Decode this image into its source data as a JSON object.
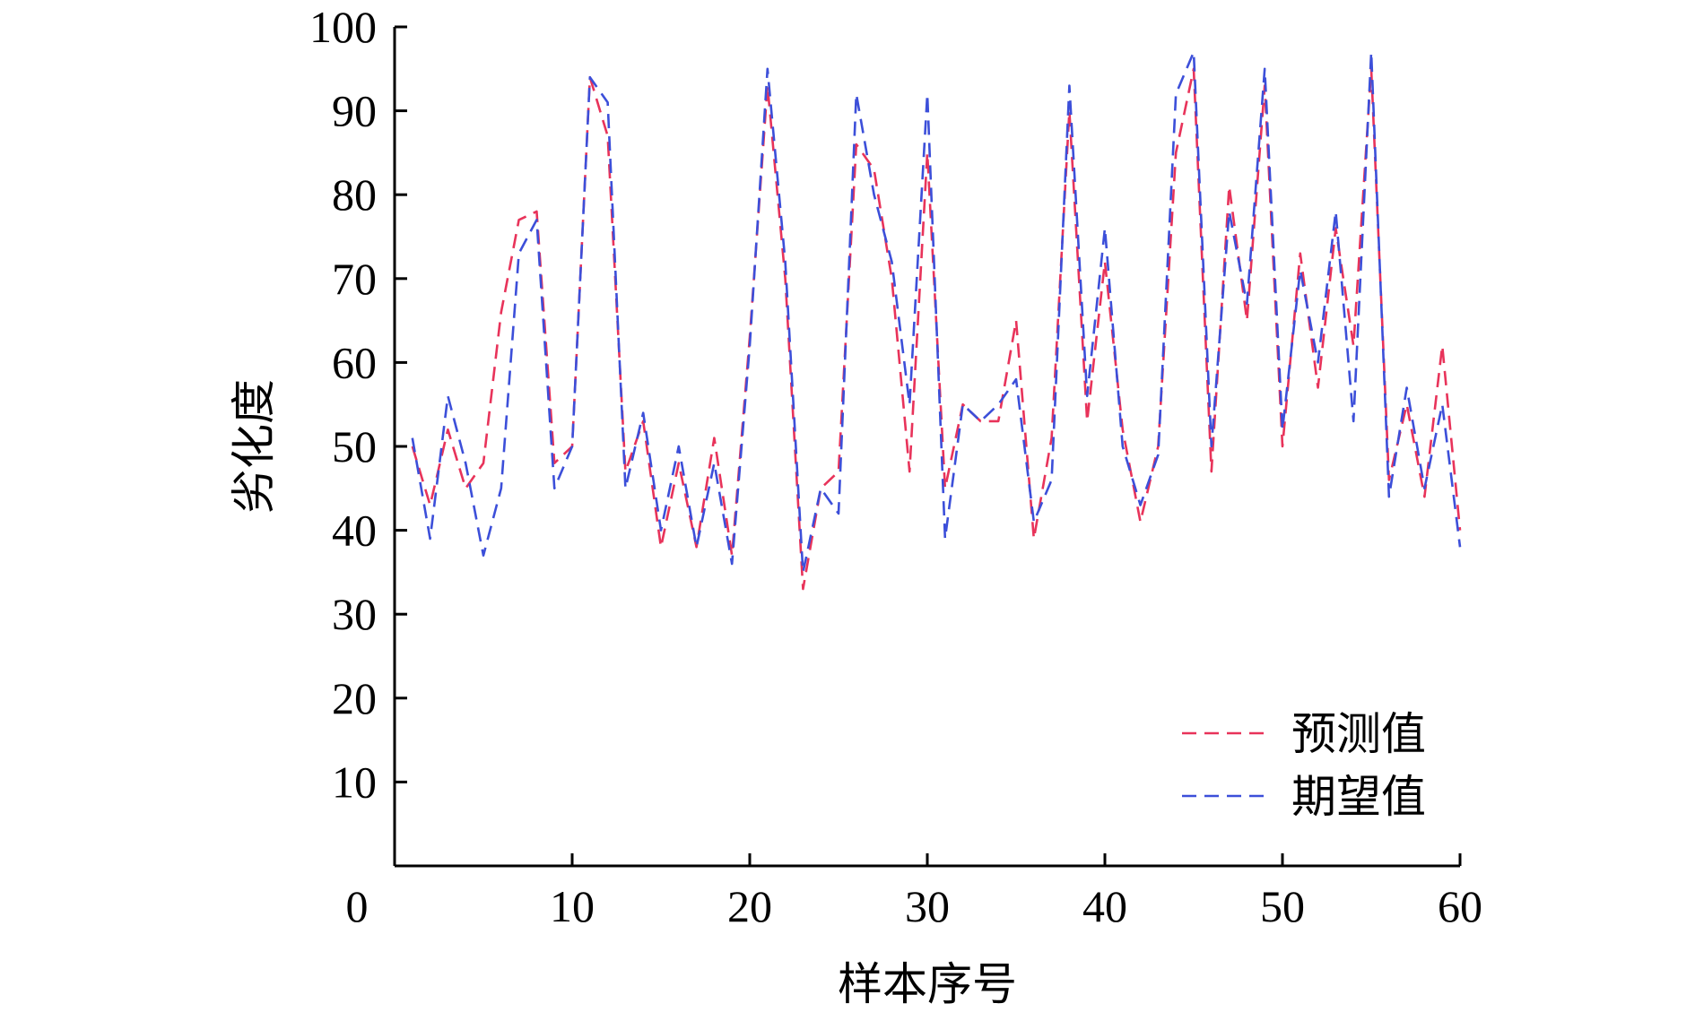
{
  "chart_data": {
    "type": "line",
    "title": "",
    "xlabel": "样本序号",
    "ylabel": "劣化度",
    "xlim": [
      0,
      60
    ],
    "ylim": [
      0,
      100
    ],
    "x_ticks": [
      0,
      10,
      20,
      30,
      40,
      50,
      60
    ],
    "y_ticks": [
      10,
      20,
      30,
      40,
      50,
      60,
      70,
      80,
      90,
      100
    ],
    "grid": false,
    "legend_position": "bottom-right",
    "x": [
      1,
      2,
      3,
      4,
      5,
      6,
      7,
      8,
      9,
      10,
      11,
      12,
      13,
      14,
      15,
      16,
      17,
      18,
      19,
      20,
      21,
      22,
      23,
      24,
      25,
      26,
      27,
      28,
      29,
      30,
      31,
      32,
      33,
      34,
      35,
      36,
      37,
      38,
      39,
      40,
      41,
      42,
      43,
      44,
      45,
      46,
      47,
      48,
      49,
      50,
      51,
      52,
      53,
      54,
      55,
      56,
      57,
      58,
      59,
      60
    ],
    "series": [
      {
        "name": "预测值",
        "color": "#e8335a",
        "dash": "dashed",
        "values": [
          50,
          43,
          52,
          45,
          48,
          66,
          77,
          78,
          48,
          50,
          94,
          87,
          47,
          53,
          38,
          48,
          38,
          51,
          37,
          63,
          93,
          70,
          33,
          45,
          47,
          86,
          83,
          70,
          47,
          85,
          45,
          55,
          53,
          53,
          65,
          39,
          51,
          90,
          53,
          72,
          52,
          41,
          50,
          85,
          95,
          47,
          81,
          65,
          93,
          50,
          73,
          57,
          76,
          62,
          95,
          46,
          55,
          44,
          62,
          40
        ]
      },
      {
        "name": "期望值",
        "color": "#3c4fd9",
        "dash": "dashed",
        "values": [
          51,
          39,
          56,
          48,
          37,
          45,
          73,
          77,
          45,
          50,
          94,
          91,
          45,
          54,
          40,
          50,
          38,
          48,
          36,
          62,
          95,
          72,
          35,
          45,
          42,
          92,
          80,
          72,
          55,
          92,
          39,
          55,
          53,
          55,
          58,
          41,
          46,
          93,
          56,
          76,
          50,
          43,
          49,
          92,
          97,
          50,
          78,
          67,
          95,
          52,
          71,
          60,
          78,
          53,
          97,
          44,
          57,
          45,
          55,
          38
        ]
      }
    ]
  }
}
